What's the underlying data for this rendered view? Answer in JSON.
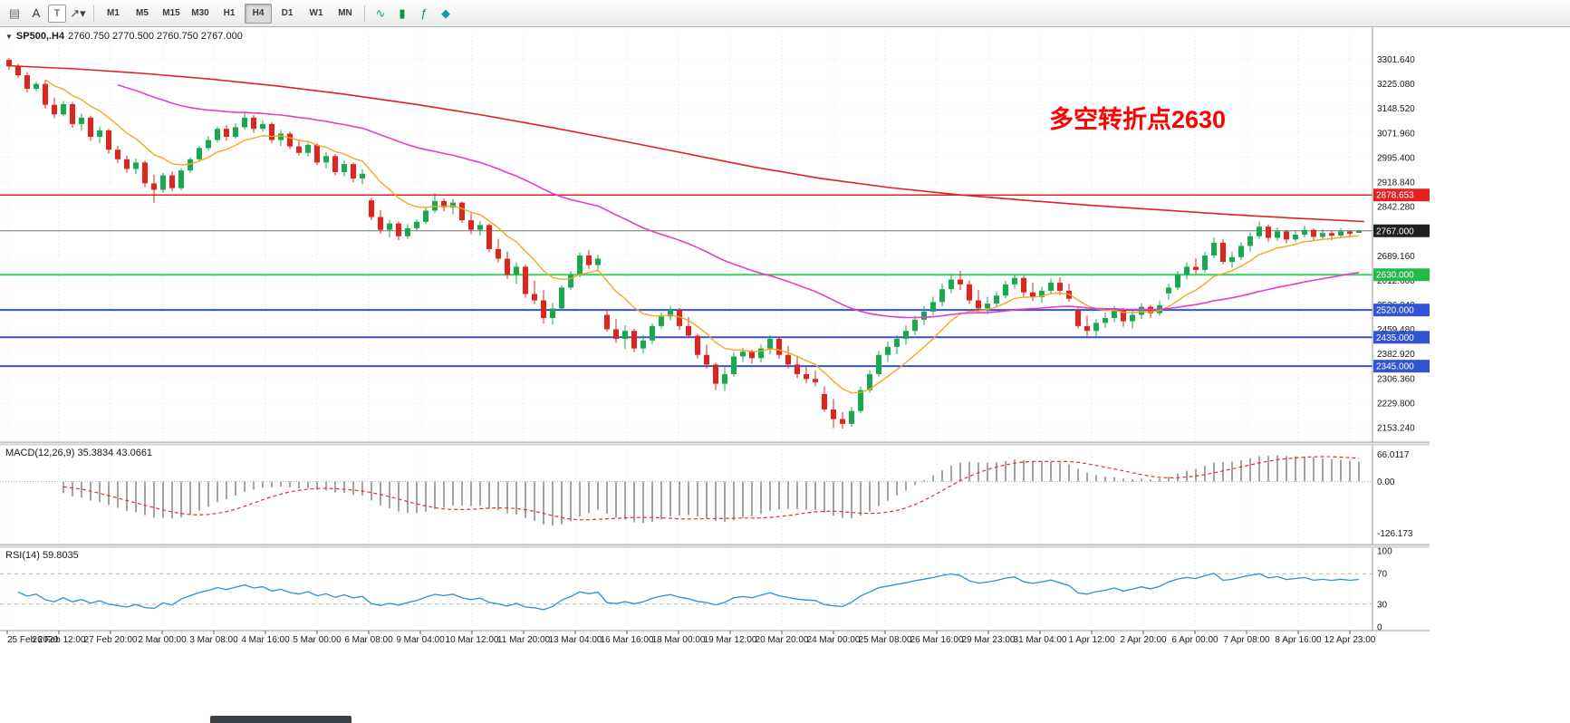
{
  "toolbar": {
    "left_icons": [
      {
        "name": "charts-grid-icon",
        "glyph": "▤",
        "color": "#6a6a6a",
        "boxed": false
      },
      {
        "name": "label-a-icon",
        "glyph": "A",
        "color": "#333333",
        "boxed": false
      },
      {
        "name": "text-tool-icon",
        "glyph": "T",
        "color": "#333333",
        "boxed": true
      },
      {
        "name": "draw-tools-icon",
        "glyph": "↗▾",
        "color": "#444444",
        "boxed": false
      }
    ],
    "timeframes": [
      "M1",
      "M5",
      "M15",
      "M30",
      "H1",
      "H4",
      "D1",
      "W1",
      "MN"
    ],
    "active_timeframe": "H4",
    "right_icons": [
      {
        "name": "tick-chart-icon",
        "glyph": "∿",
        "color": "#0ca089",
        "boxed": false
      },
      {
        "name": "candles-icon",
        "glyph": "▮",
        "color": "#0c8f46",
        "boxed": false
      },
      {
        "name": "indicators-icon",
        "glyph": "ƒ",
        "color": "#0c8f46",
        "boxed": false
      },
      {
        "name": "objects-icon",
        "glyph": "◆",
        "color": "#0ca0a0",
        "boxed": false
      }
    ]
  },
  "chart": {
    "title": "SP500,.H4",
    "ohlc_text": "2760.750 2770.500 2760.750 2767.000",
    "annotation": {
      "text": "多空转折点2630",
      "color": "#ff0000"
    },
    "colors": {
      "up": "#16a94e",
      "down": "#e0251c",
      "grid": "#e0e0e0",
      "hgrid": "#ededed",
      "ma_fast": "#f5a623",
      "ma_mid": "#e93ad4",
      "ma_long": "#dd2222",
      "axis_text": "#1a1a1a",
      "current_line": "#777777"
    },
    "price_axis": {
      "ticks": [
        "3301.640",
        "3225.080",
        "3148.520",
        "3071.960",
        "2995.400",
        "2918.840",
        "2842.280",
        "2765.720",
        "2689.160",
        "2612.600",
        "2536.040",
        "2459.480",
        "2382.920",
        "2306.360",
        "2229.800",
        "2153.240"
      ],
      "current": {
        "value": 2767.0,
        "label": "2767.000",
        "badge_color": "#1f1f1f"
      }
    },
    "levels": [
      {
        "value": 2878.653,
        "label": "2878.653",
        "color": "#e32222",
        "badge": "#e32222",
        "width": 1.5
      },
      {
        "value": 2630.0,
        "label": "2630.000",
        "color": "#35d45c",
        "badge": "#27b84a",
        "width": 2
      },
      {
        "value": 2520.0,
        "label": "2520.000",
        "color": "#3353d6",
        "badge": "#3353d6",
        "width": 2
      },
      {
        "value": 2435.0,
        "label": "2435.000",
        "color": "#3353d6",
        "badge": "#3353d6",
        "width": 2
      },
      {
        "value": 2345.0,
        "label": "2345.000",
        "color": "#3353d6",
        "badge": "#3353d6",
        "width": 2
      }
    ],
    "time_axis": {
      "labels": [
        "25 Feb 2020",
        "26 Feb 12:00",
        "27 Feb 20:00",
        "2 Mar 00:00",
        "3 Mar 08:00",
        "4 Mar 16:00",
        "5 Mar 00:00",
        "6 Mar 08:00",
        "9 Mar 04:00",
        "10 Mar 12:00",
        "11 Mar 20:00",
        "13 Mar 04:00",
        "16 Mar 16:00",
        "18 Mar 00:00",
        "19 Mar 12:00",
        "20 Mar 20:00",
        "24 Mar 00:00",
        "25 Mar 08:00",
        "26 Mar 16:00",
        "29 Mar 23:00",
        "31 Mar 04:00",
        "1 Apr 12:00",
        "2 Apr 20:00",
        "6 Apr 00:00",
        "7 Apr 08:00",
        "8 Apr 16:00",
        "12 Apr 23:00"
      ]
    }
  },
  "chart_data": {
    "type": "candlestick",
    "symbol": "SP500",
    "timeframe": "H4",
    "x_range": [
      "25 Feb 2020",
      "13 Apr 2020"
    ],
    "price_range": [
      2125,
      3385
    ],
    "candles": [
      [
        3300,
        3306,
        3268,
        3280
      ],
      [
        3280,
        3288,
        3244,
        3252
      ],
      [
        3252,
        3262,
        3198,
        3210
      ],
      [
        3210,
        3232,
        3202,
        3225
      ],
      [
        3225,
        3236,
        3148,
        3160
      ],
      [
        3160,
        3182,
        3118,
        3130
      ],
      [
        3130,
        3172,
        3124,
        3162
      ],
      [
        3162,
        3168,
        3088,
        3100
      ],
      [
        3100,
        3132,
        3078,
        3120
      ],
      [
        3120,
        3126,
        3048,
        3060
      ],
      [
        3060,
        3092,
        3040,
        3080
      ],
      [
        3080,
        3086,
        3008,
        3020
      ],
      [
        3020,
        3032,
        2978,
        2990
      ],
      [
        2990,
        3002,
        2948,
        2960
      ],
      [
        2960,
        2992,
        2944,
        2980
      ],
      [
        2980,
        2986,
        2902,
        2915
      ],
      [
        2915,
        2942,
        2855,
        2895
      ],
      [
        2895,
        2948,
        2886,
        2940
      ],
      [
        2940,
        2952,
        2890,
        2900
      ],
      [
        2900,
        2962,
        2894,
        2955
      ],
      [
        2955,
        2996,
        2948,
        2990
      ],
      [
        2990,
        3032,
        2984,
        3025
      ],
      [
        3025,
        3062,
        3018,
        3050
      ],
      [
        3050,
        3092,
        3042,
        3085
      ],
      [
        3085,
        3096,
        3048,
        3060
      ],
      [
        3060,
        3102,
        3054,
        3090
      ],
      [
        3090,
        3135,
        3082,
        3120
      ],
      [
        3120,
        3128,
        3072,
        3085
      ],
      [
        3085,
        3112,
        3076,
        3100
      ],
      [
        3100,
        3106,
        3040,
        3050
      ],
      [
        3050,
        3082,
        3032,
        3070
      ],
      [
        3070,
        3076,
        3022,
        3030
      ],
      [
        3030,
        3052,
        3002,
        3010
      ],
      [
        3010,
        3042,
        2998,
        3035
      ],
      [
        3035,
        3040,
        2972,
        2980
      ],
      [
        2980,
        3012,
        2962,
        3000
      ],
      [
        3000,
        3006,
        2940,
        2950
      ],
      [
        2950,
        2986,
        2936,
        2975
      ],
      [
        2975,
        2980,
        2918,
        2930
      ],
      [
        2930,
        2958,
        2912,
        2945
      ],
      [
        2862,
        2870,
        2800,
        2810
      ],
      [
        2810,
        2832,
        2758,
        2770
      ],
      [
        2770,
        2802,
        2746,
        2790
      ],
      [
        2790,
        2796,
        2738,
        2750
      ],
      [
        2750,
        2788,
        2742,
        2775
      ],
      [
        2775,
        2802,
        2768,
        2795
      ],
      [
        2795,
        2842,
        2788,
        2830
      ],
      [
        2830,
        2885,
        2822,
        2860
      ],
      [
        2860,
        2868,
        2828,
        2840
      ],
      [
        2840,
        2866,
        2818,
        2855
      ],
      [
        2855,
        2858,
        2792,
        2800
      ],
      [
        2800,
        2822,
        2756,
        2770
      ],
      [
        2770,
        2798,
        2752,
        2785
      ],
      [
        2785,
        2790,
        2700,
        2710
      ],
      [
        2710,
        2742,
        2668,
        2680
      ],
      [
        2680,
        2702,
        2618,
        2630
      ],
      [
        2630,
        2668,
        2602,
        2655
      ],
      [
        2655,
        2662,
        2558,
        2570
      ],
      [
        2570,
        2612,
        2538,
        2550
      ],
      [
        2550,
        2582,
        2478,
        2495
      ],
      [
        2495,
        2542,
        2474,
        2525
      ],
      [
        2525,
        2598,
        2518,
        2590
      ],
      [
        2590,
        2642,
        2582,
        2630
      ],
      [
        2630,
        2700,
        2622,
        2690
      ],
      [
        2690,
        2708,
        2648,
        2660
      ],
      [
        2660,
        2692,
        2640,
        2680
      ],
      [
        2505,
        2522,
        2452,
        2460
      ],
      [
        2460,
        2492,
        2418,
        2430
      ],
      [
        2430,
        2472,
        2398,
        2455
      ],
      [
        2455,
        2462,
        2388,
        2400
      ],
      [
        2400,
        2442,
        2384,
        2425
      ],
      [
        2425,
        2478,
        2412,
        2470
      ],
      [
        2470,
        2512,
        2462,
        2500
      ],
      [
        2500,
        2532,
        2488,
        2520
      ],
      [
        2520,
        2526,
        2458,
        2470
      ],
      [
        2470,
        2498,
        2432,
        2440
      ],
      [
        2440,
        2446,
        2368,
        2380
      ],
      [
        2380,
        2412,
        2338,
        2350
      ],
      [
        2350,
        2356,
        2270,
        2290
      ],
      [
        2290,
        2342,
        2268,
        2320
      ],
      [
        2320,
        2388,
        2312,
        2375
      ],
      [
        2375,
        2402,
        2358,
        2390
      ],
      [
        2390,
        2396,
        2352,
        2370
      ],
      [
        2370,
        2412,
        2356,
        2400
      ],
      [
        2400,
        2442,
        2382,
        2430
      ],
      [
        2430,
        2436,
        2368,
        2380
      ],
      [
        2380,
        2408,
        2338,
        2350
      ],
      [
        2350,
        2378,
        2308,
        2320
      ],
      [
        2320,
        2348,
        2292,
        2305
      ],
      [
        2305,
        2332,
        2282,
        2295
      ],
      [
        2258,
        2282,
        2202,
        2210
      ],
      [
        2210,
        2242,
        2152,
        2180
      ],
      [
        2180,
        2202,
        2150,
        2165
      ],
      [
        2165,
        2218,
        2156,
        2205
      ],
      [
        2205,
        2282,
        2198,
        2270
      ],
      [
        2270,
        2332,
        2262,
        2320
      ],
      [
        2320,
        2392,
        2312,
        2380
      ],
      [
        2380,
        2422,
        2358,
        2405
      ],
      [
        2405,
        2442,
        2382,
        2430
      ],
      [
        2430,
        2472,
        2412,
        2455
      ],
      [
        2455,
        2502,
        2442,
        2490
      ],
      [
        2490,
        2532,
        2472,
        2515
      ],
      [
        2515,
        2562,
        2502,
        2545
      ],
      [
        2545,
        2602,
        2532,
        2585
      ],
      [
        2585,
        2632,
        2572,
        2615
      ],
      [
        2615,
        2642,
        2582,
        2600
      ],
      [
        2600,
        2612,
        2538,
        2550
      ],
      [
        2550,
        2582,
        2512,
        2525
      ],
      [
        2525,
        2562,
        2506,
        2540
      ],
      [
        2540,
        2578,
        2530,
        2565
      ],
      [
        2565,
        2612,
        2556,
        2600
      ],
      [
        2600,
        2632,
        2586,
        2620
      ],
      [
        2620,
        2626,
        2562,
        2575
      ],
      [
        2575,
        2606,
        2548,
        2560
      ],
      [
        2560,
        2592,
        2542,
        2580
      ],
      [
        2580,
        2618,
        2570,
        2605
      ],
      [
        2605,
        2622,
        2566,
        2580
      ],
      [
        2580,
        2602,
        2546,
        2555
      ],
      [
        2518,
        2528,
        2462,
        2470
      ],
      [
        2470,
        2502,
        2438,
        2455
      ],
      [
        2455,
        2492,
        2436,
        2480
      ],
      [
        2480,
        2512,
        2464,
        2495
      ],
      [
        2495,
        2532,
        2482,
        2520
      ],
      [
        2520,
        2526,
        2468,
        2485
      ],
      [
        2485,
        2518,
        2462,
        2505
      ],
      [
        2505,
        2542,
        2492,
        2530
      ],
      [
        2530,
        2536,
        2496,
        2510
      ],
      [
        2510,
        2548,
        2502,
        2535
      ],
      [
        2572,
        2602,
        2552,
        2590
      ],
      [
        2590,
        2642,
        2582,
        2630
      ],
      [
        2630,
        2668,
        2616,
        2655
      ],
      [
        2655,
        2682,
        2632,
        2645
      ],
      [
        2645,
        2702,
        2636,
        2690
      ],
      [
        2690,
        2746,
        2682,
        2730
      ],
      [
        2730,
        2742,
        2662,
        2670
      ],
      [
        2670,
        2702,
        2652,
        2685
      ],
      [
        2685,
        2732,
        2676,
        2720
      ],
      [
        2720,
        2762,
        2702,
        2750
      ],
      [
        2750,
        2796,
        2742,
        2780
      ],
      [
        2780,
        2786,
        2732,
        2745
      ],
      [
        2745,
        2778,
        2736,
        2765
      ],
      [
        2765,
        2770,
        2728,
        2740
      ],
      [
        2740,
        2768,
        2732,
        2755
      ],
      [
        2755,
        2782,
        2746,
        2770
      ],
      [
        2770,
        2774,
        2736,
        2748
      ],
      [
        2748,
        2772,
        2740,
        2760
      ],
      [
        2760,
        2766,
        2738,
        2752
      ],
      [
        2752,
        2776,
        2744,
        2765
      ],
      [
        2765,
        2769,
        2746,
        2758
      ],
      [
        2760.75,
        2770.5,
        2760.75,
        2767
      ]
    ],
    "overlays": [
      {
        "name": "ma-fast",
        "type": "ema",
        "period": 10,
        "color": "#f5a623"
      },
      {
        "name": "ma-mid",
        "type": "ema",
        "period": 55,
        "color": "#e93ad4"
      },
      {
        "name": "ma-long",
        "type": "path",
        "color": "#dd2222",
        "points": [
          [
            0,
            3282
          ],
          [
            0.05,
            3272
          ],
          [
            0.1,
            3258
          ],
          [
            0.15,
            3240
          ],
          [
            0.2,
            3218
          ],
          [
            0.25,
            3192
          ],
          [
            0.3,
            3162
          ],
          [
            0.35,
            3128
          ],
          [
            0.4,
            3090
          ],
          [
            0.45,
            3050
          ],
          [
            0.5,
            3008
          ],
          [
            0.55,
            2966
          ],
          [
            0.6,
            2930
          ],
          [
            0.65,
            2902
          ],
          [
            0.7,
            2880
          ],
          [
            0.75,
            2862
          ],
          [
            0.8,
            2846
          ],
          [
            0.85,
            2832
          ],
          [
            0.9,
            2818
          ],
          [
            0.95,
            2806
          ],
          [
            1,
            2796
          ]
        ]
      }
    ],
    "indicators": [
      {
        "name": "MACD",
        "label": "MACD(12,26,9) 35.3834 43.0661",
        "fast": 12,
        "slow": 26,
        "signal": 9,
        "last_main": "35.3834",
        "last_signal": "43.0661",
        "axis_labels": [
          "66.0117",
          "0.00",
          "-126.173"
        ],
        "histogram_color": "#a4a4a4",
        "signal_color": "#e03030"
      },
      {
        "name": "RSI",
        "label": "RSI(14) 59.8035",
        "period": 14,
        "last_value": "59.8035",
        "axis_labels": [
          "100",
          "70",
          "30",
          "0"
        ],
        "levels": [
          70,
          30
        ],
        "line_color": "#2f8fd8"
      }
    ]
  },
  "misc": {
    "taskbar_fragment": true
  }
}
